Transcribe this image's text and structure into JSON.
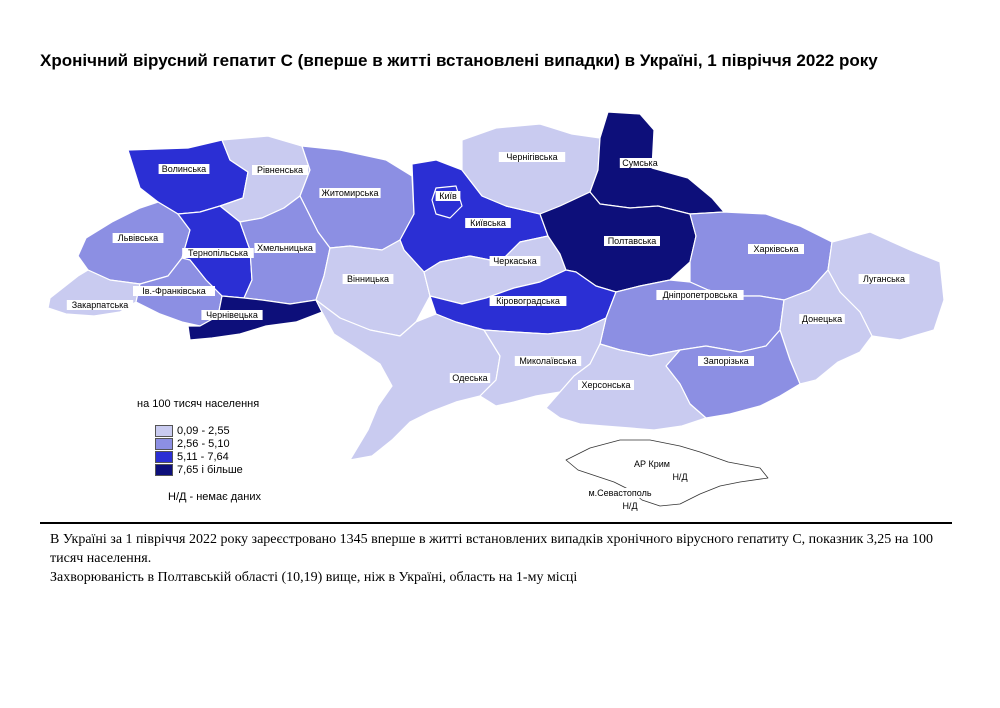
{
  "title": "Хронічний вірусний гепатит С (вперше в житті встановлені випадки) в Україні, 1 півріччя 2022 року",
  "legend": {
    "title": "на 100 тисяч населення",
    "classes": [
      {
        "label": "0,09 - 2,55",
        "color": "#c9cbf0"
      },
      {
        "label": "2,56 - 5,10",
        "color": "#8c8fe3"
      },
      {
        "label": "5,11 - 7,64",
        "color": "#2b2fd4"
      },
      {
        "label": "7,65 і більше",
        "color": "#0d0f7a"
      }
    ],
    "nodata_note": "Н/Д - немає даних"
  },
  "regions": [
    {
      "name": "Волинська",
      "class": 2
    },
    {
      "name": "Рівненська",
      "class": 0
    },
    {
      "name": "Житомирська",
      "class": 1
    },
    {
      "name": "Київ",
      "class": 2
    },
    {
      "name": "Київська",
      "class": 2
    },
    {
      "name": "Чернігівська",
      "class": 0
    },
    {
      "name": "Сумська",
      "class": 3
    },
    {
      "name": "Львівська",
      "class": 1
    },
    {
      "name": "Тернопільська",
      "class": 2
    },
    {
      "name": "Хмельницька",
      "class": 1
    },
    {
      "name": "Вінницька",
      "class": 0
    },
    {
      "name": "Черкаська",
      "class": 0
    },
    {
      "name": "Полтавська",
      "class": 3
    },
    {
      "name": "Харківська",
      "class": 1
    },
    {
      "name": "Луганська",
      "class": 0
    },
    {
      "name": "Закарпатська",
      "class": 0
    },
    {
      "name": "Ів.-Франківська",
      "class": 1
    },
    {
      "name": "Чернівецька",
      "class": 3
    },
    {
      "name": "Кіровоградська",
      "class": 2
    },
    {
      "name": "Дніпропетровська",
      "class": 1
    },
    {
      "name": "Донецька",
      "class": 0
    },
    {
      "name": "Одеська",
      "class": 0
    },
    {
      "name": "Миколаївська",
      "class": 0
    },
    {
      "name": "Запорізька",
      "class": 1
    },
    {
      "name": "Херсонська",
      "class": 0
    },
    {
      "name": "АР Крим",
      "class": null
    },
    {
      "name": "м.Севастополь",
      "class": null
    }
  ],
  "nodata_marks": [
    "Н/Д",
    "Н/Д"
  ],
  "notes": [
    "В Україні за 1 півріччя 2022 року зареєстровано 1345 вперше в житті встановлених випадків хронічного вірусного гепатиту С, показник 3,25 на 100 тисяч населення.",
    "Захворюваність в Полтавській області (10,19) вище, ніж в Україні, область на 1-му місці"
  ]
}
